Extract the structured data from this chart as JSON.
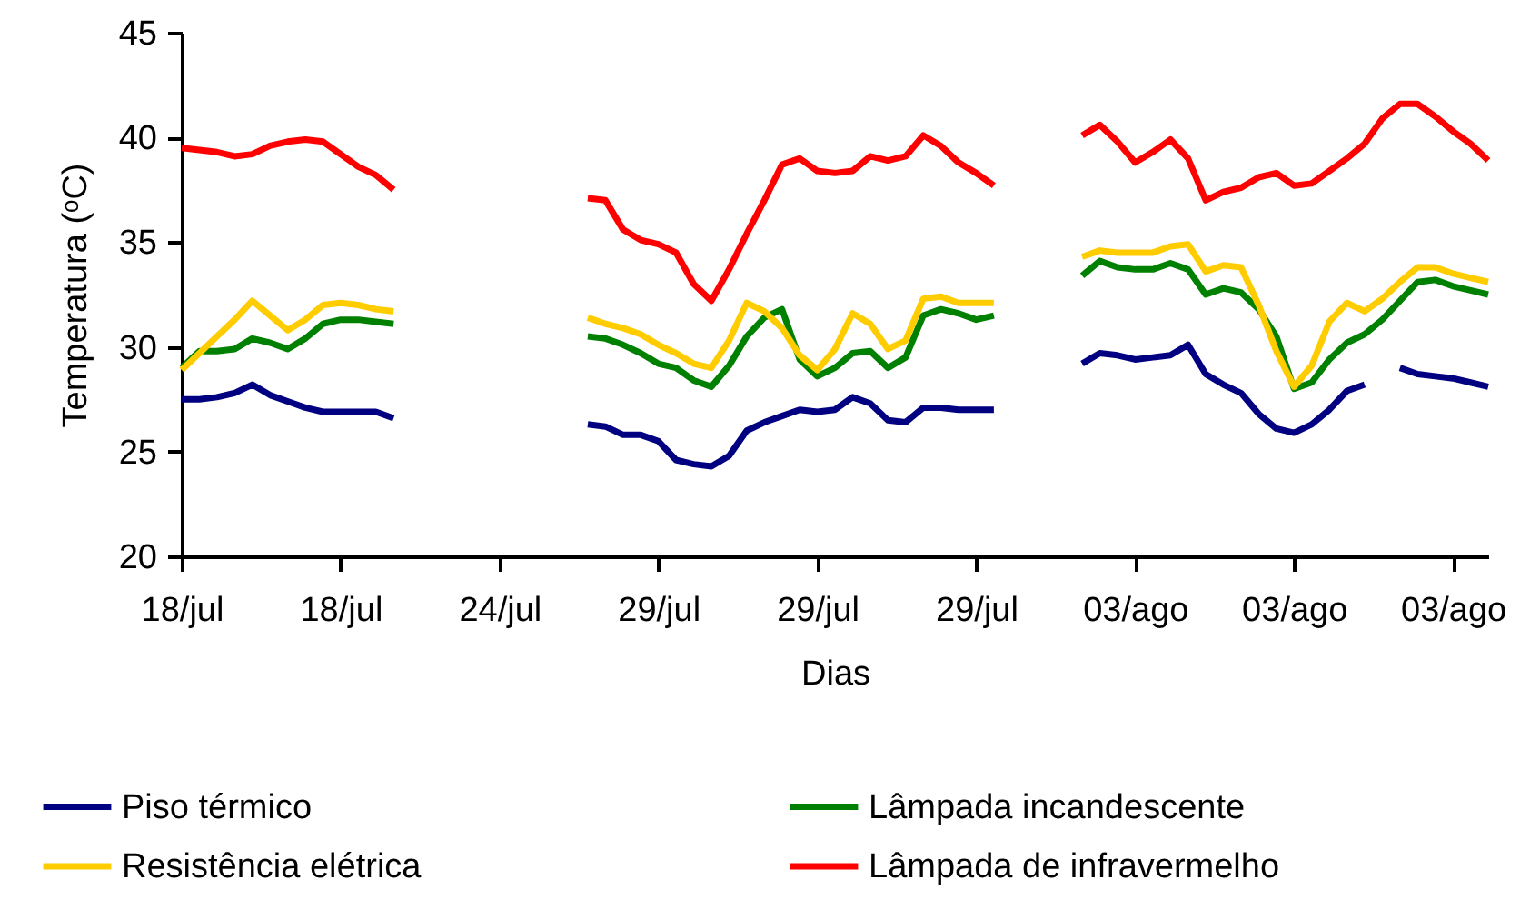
{
  "chart_data": {
    "type": "line",
    "xlabel": "Dias",
    "ylabel": "Temperatura (ᵒC)",
    "ylim": [
      20,
      45
    ],
    "yticks": [
      20,
      25,
      30,
      35,
      40,
      45
    ],
    "categories": [
      "18/jul",
      null,
      null,
      null,
      null,
      null,
      null,
      null,
      null,
      "18/jul",
      null,
      null,
      null,
      null,
      null,
      null,
      null,
      null,
      "24/jul",
      null,
      null,
      null,
      null,
      null,
      null,
      null,
      null,
      "29/jul",
      null,
      null,
      null,
      null,
      null,
      null,
      null,
      null,
      "29/jul",
      null,
      null,
      null,
      null,
      null,
      null,
      null,
      null,
      "29/jul",
      null,
      null,
      null,
      null,
      null,
      null,
      null,
      null,
      "03/ago",
      null,
      null,
      null,
      null,
      null,
      null,
      null,
      null,
      "03/ago",
      null,
      null,
      null,
      null,
      null,
      null,
      null,
      null,
      "03/ago",
      null,
      null
    ],
    "grid": false,
    "legend": "bottom",
    "line_style": "solid",
    "marker": "none",
    "series": [
      {
        "name": "Piso térmico",
        "color": "#000080",
        "values": [
          27.5,
          27.5,
          27.6,
          27.8,
          28.2,
          27.7,
          27.4,
          27.1,
          26.9,
          26.9,
          26.9,
          26.9,
          26.6,
          null,
          null,
          null,
          null,
          null,
          null,
          null,
          null,
          null,
          null,
          26.3,
          26.2,
          25.8,
          25.8,
          25.5,
          24.6,
          24.4,
          24.3,
          24.8,
          26.0,
          26.4,
          26.7,
          27.0,
          26.9,
          27.0,
          27.6,
          27.3,
          26.5,
          26.4,
          27.1,
          27.1,
          27.0,
          27.0,
          27.0,
          null,
          null,
          null,
          null,
          29.2,
          29.7,
          29.6,
          29.4,
          29.5,
          29.6,
          30.1,
          28.7,
          28.2,
          27.8,
          26.8,
          26.1,
          25.9,
          26.3,
          27.0,
          27.9,
          28.2,
          null,
          29.0,
          28.7,
          28.6,
          28.5,
          28.3,
          28.1
        ]
      },
      {
        "name": "Lâmpada incandescente",
        "color": "#008000",
        "values": [
          29.0,
          29.8,
          29.8,
          29.9,
          30.4,
          30.2,
          29.9,
          30.4,
          31.1,
          31.3,
          31.3,
          31.2,
          31.1,
          null,
          null,
          null,
          null,
          null,
          null,
          null,
          null,
          null,
          null,
          30.5,
          30.4,
          30.1,
          29.7,
          29.2,
          29.0,
          28.4,
          28.1,
          29.1,
          30.5,
          31.4,
          31.8,
          29.4,
          28.6,
          29.0,
          29.7,
          29.8,
          29.0,
          29.5,
          31.5,
          31.8,
          31.6,
          31.3,
          31.5,
          null,
          null,
          null,
          null,
          33.4,
          34.1,
          33.8,
          33.7,
          33.7,
          34.0,
          33.7,
          32.5,
          32.8,
          32.6,
          31.8,
          30.5,
          28.0,
          28.3,
          29.4,
          30.2,
          30.6,
          31.3,
          32.2,
          33.1,
          33.2,
          32.9,
          32.7,
          32.5
        ]
      },
      {
        "name": "Resistência elétrica",
        "color": "#ffcc00",
        "values": [
          28.9,
          29.7,
          30.5,
          31.3,
          32.2,
          31.5,
          30.8,
          31.3,
          32.0,
          32.1,
          32.0,
          31.8,
          31.7,
          null,
          null,
          null,
          null,
          null,
          null,
          null,
          null,
          null,
          null,
          31.4,
          31.1,
          30.9,
          30.6,
          30.1,
          29.7,
          29.2,
          29.0,
          30.3,
          32.1,
          31.7,
          30.9,
          29.6,
          28.9,
          29.9,
          31.6,
          31.1,
          29.9,
          30.3,
          32.3,
          32.4,
          32.1,
          32.1,
          32.1,
          null,
          null,
          null,
          null,
          34.3,
          34.6,
          34.5,
          34.5,
          34.5,
          34.8,
          34.9,
          33.6,
          33.9,
          33.8,
          32.0,
          29.8,
          28.1,
          29.1,
          31.2,
          32.1,
          31.7,
          32.3,
          33.1,
          33.8,
          33.8,
          33.5,
          33.3,
          33.1
        ]
      },
      {
        "name": "Lâmpada de infravermelho",
        "color": "#ff0000",
        "values": [
          39.5,
          39.4,
          39.3,
          39.1,
          39.2,
          39.6,
          39.8,
          39.9,
          39.8,
          39.2,
          38.6,
          38.2,
          37.5,
          null,
          null,
          null,
          null,
          null,
          null,
          null,
          null,
          null,
          null,
          37.1,
          37.0,
          35.6,
          35.1,
          34.9,
          34.5,
          33.0,
          32.2,
          33.7,
          35.4,
          37.0,
          38.7,
          39.0,
          38.4,
          38.3,
          38.4,
          39.1,
          38.9,
          39.1,
          40.1,
          39.6,
          38.8,
          38.3,
          37.7,
          null,
          null,
          null,
          null,
          40.1,
          40.6,
          39.8,
          38.8,
          39.3,
          39.9,
          39.0,
          37.0,
          37.4,
          37.6,
          38.1,
          38.3,
          37.7,
          37.8,
          38.4,
          39.0,
          39.7,
          40.9,
          41.6,
          41.6,
          41.0,
          40.3,
          39.7,
          38.9
        ]
      }
    ]
  }
}
